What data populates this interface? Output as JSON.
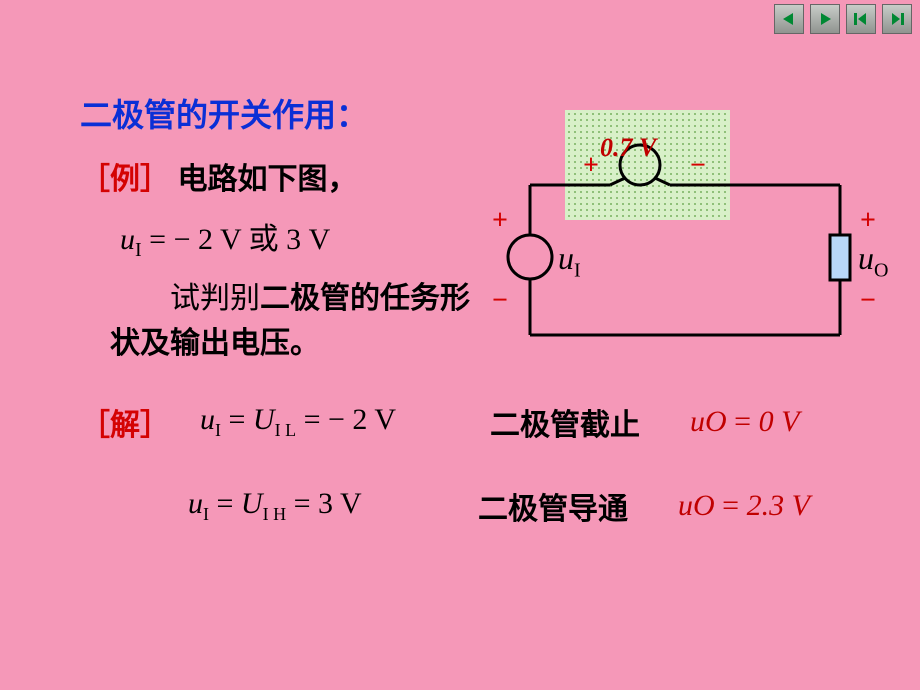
{
  "nav": {
    "prev": "prev",
    "next": "next",
    "first": "first",
    "last": "last"
  },
  "title": "二极管的开关作用：",
  "example": {
    "tag": "［例］",
    "text": "电路如下图，"
  },
  "input_formula": {
    "var": "u",
    "sub": "I",
    "eq": " = − 2 V 或 3 V"
  },
  "desc_prefix": "　　试判别",
  "desc_bold": "二极管的任务形状及输出电压。",
  "circuit": {
    "diode_voltage": "0.7 V",
    "ui_label": "u",
    "ui_sub": "I",
    "uo_label": "u",
    "uo_sub": "O",
    "colors": {
      "wire": "#000000",
      "box_fill": "#d8f0c8",
      "box_pattern": "#a8d890",
      "label_red": "#c00000",
      "sign_red": "#d40202",
      "resistor_fill": "#b8d8f8"
    }
  },
  "solution": {
    "tag": "［解］",
    "rows": [
      {
        "formula_html": "<span>u</span><sub>I</sub> <span class=\"upright\">=</span> <span>U</span><sub>I L</sub> <span class=\"upright\">= − 2 V</span>",
        "state": "二极管截止",
        "result": "uO = 0 V",
        "result_html": "<span>u</span><span>O</span> <span class=\"upright\">=</span> <span>0 V</span>"
      },
      {
        "formula_html": "<span>u</span><sub>I</sub> <span class=\"upright\">=</span> <span>U</span><sub>I H</sub> <span class=\"upright\">= 3 V</span>",
        "state": "二极管导通",
        "result": "uO = 2.3 V",
        "result_html": "<span>u</span><span>O</span> <span class=\"upright\">=</span> <span>2.3 V</span>"
      }
    ]
  }
}
